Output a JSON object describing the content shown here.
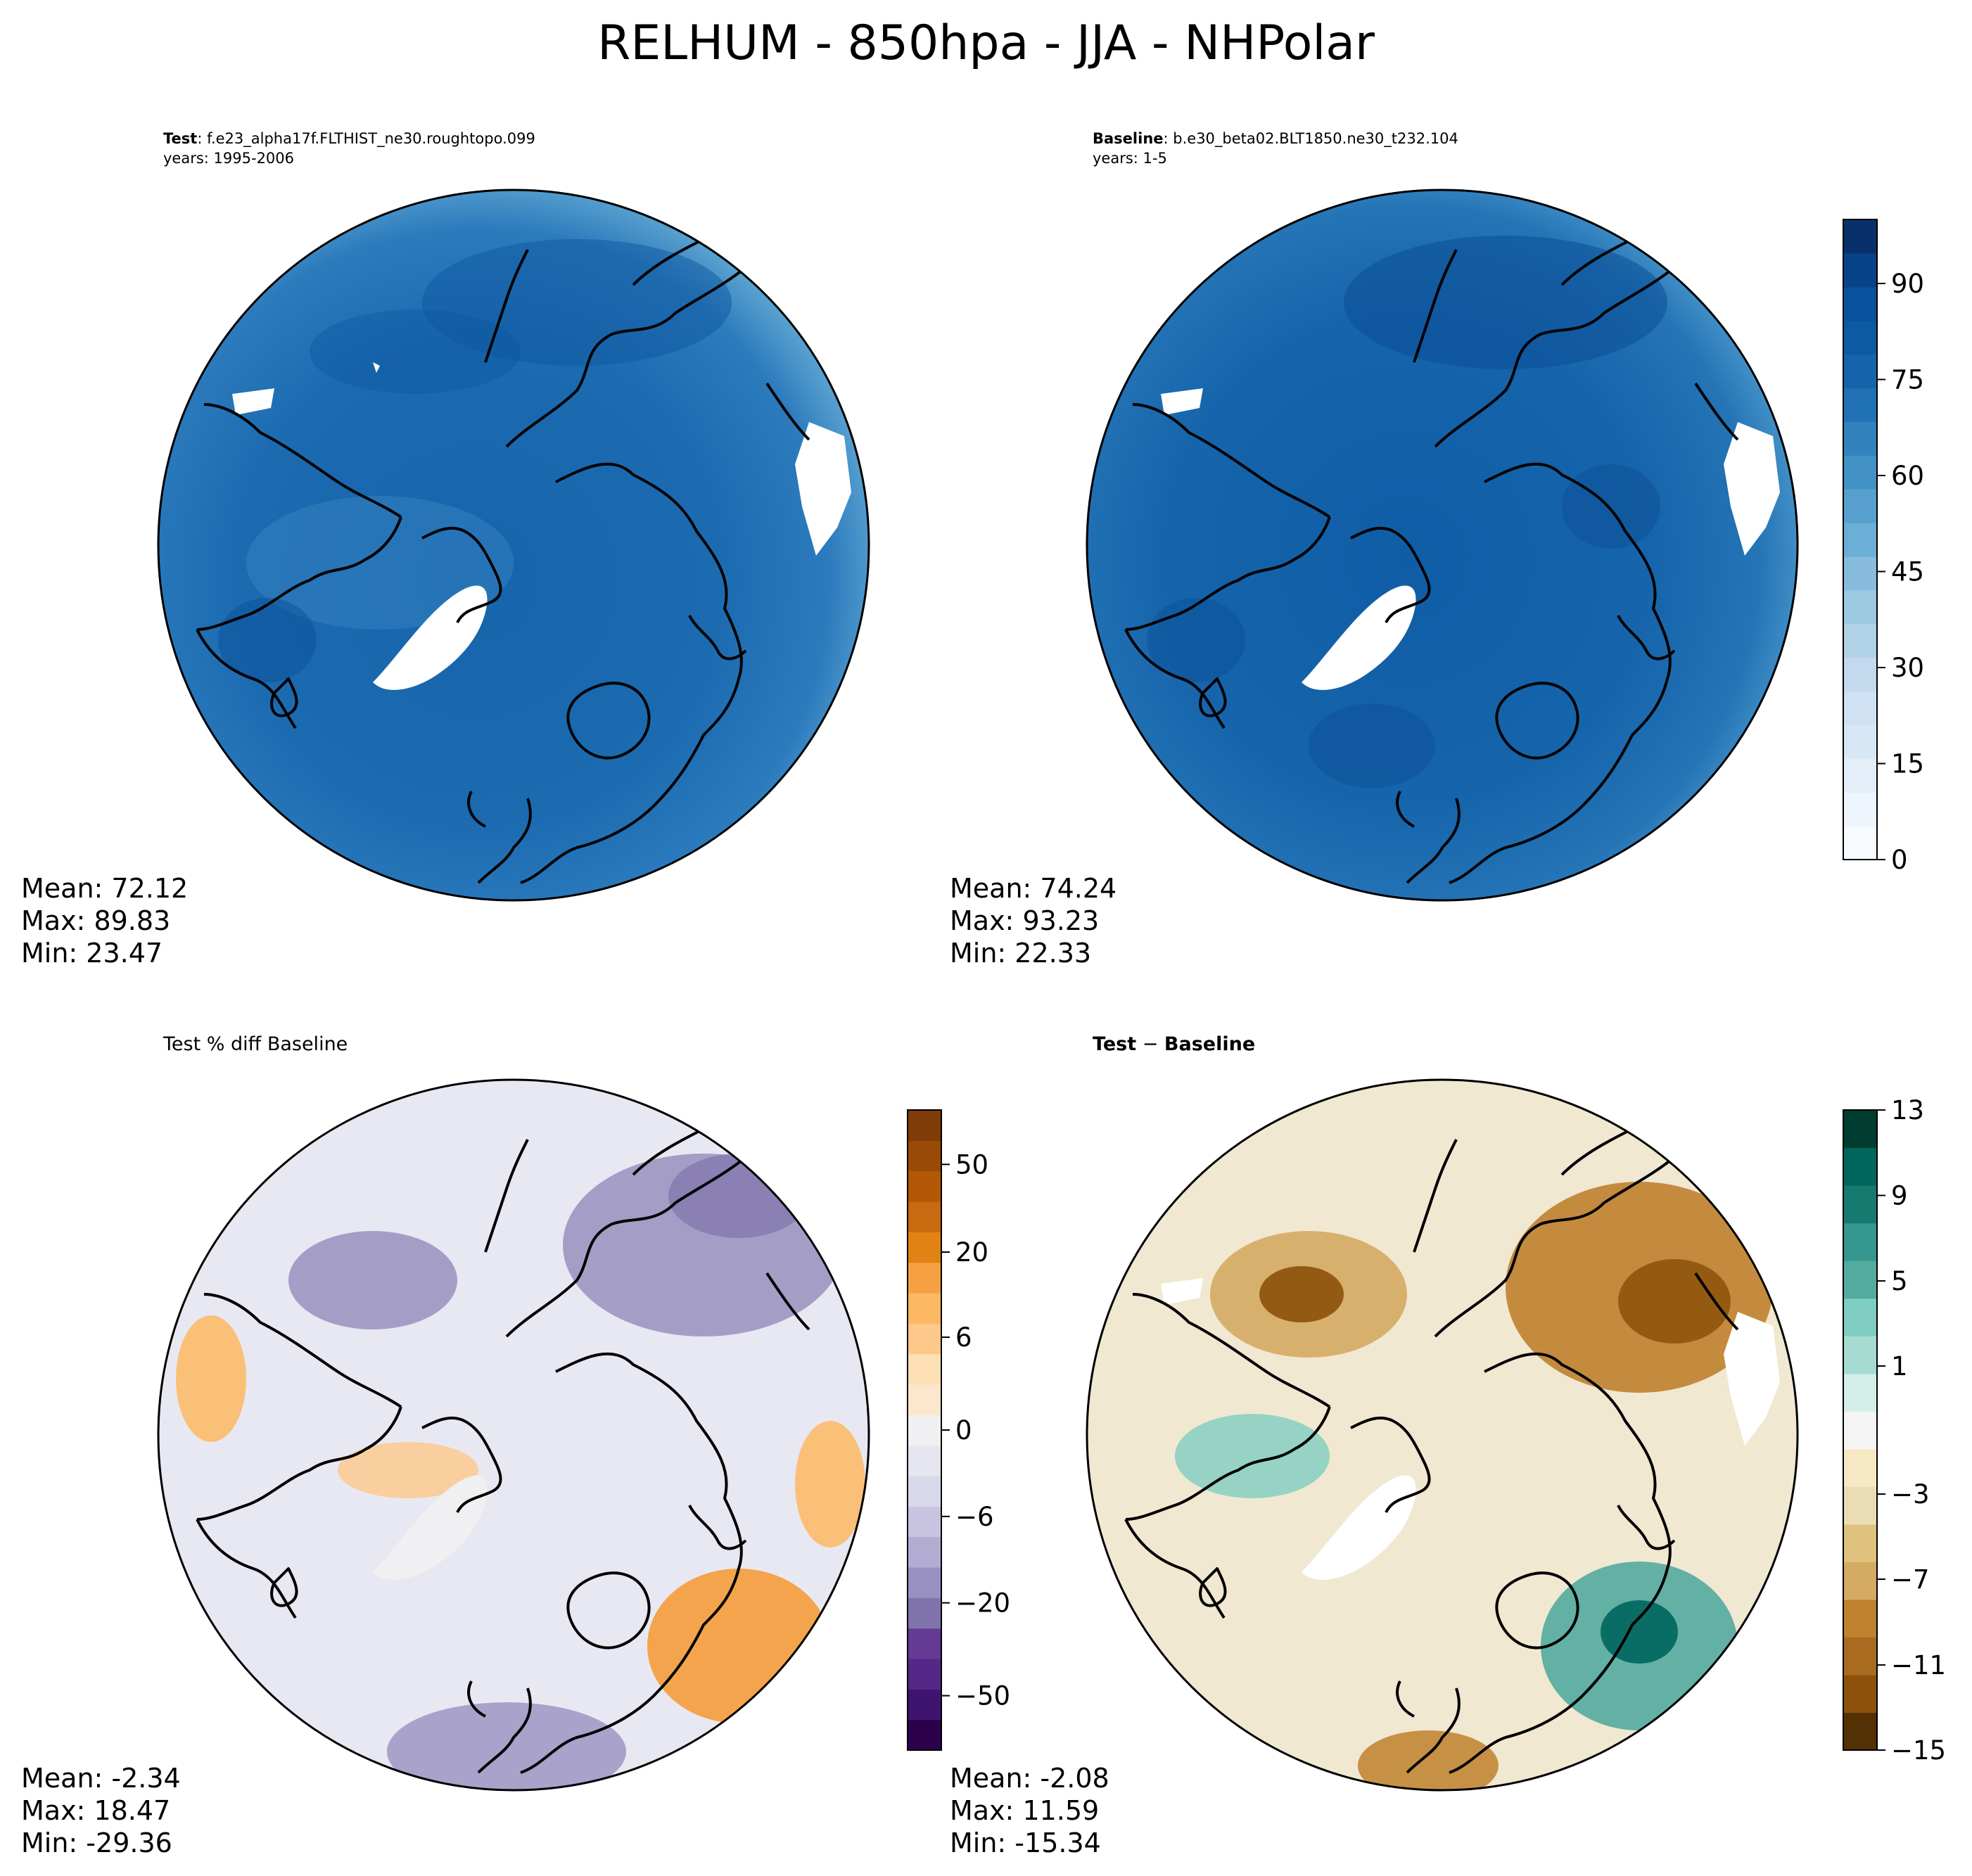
{
  "suptitle": "RELHUM - 850hpa - JJA - NHPolar",
  "panels": {
    "test": {
      "label": "Test",
      "case": ": f.e23_alpha17f.FLTHIST_ne30.roughtopo.099",
      "years": "years: 1995-2006",
      "stats": {
        "mean": "Mean: 72.12",
        "max": "Max: 89.83",
        "min": "Min: 23.47"
      }
    },
    "baseline": {
      "label": "Baseline",
      "case": ": b.e30_beta02.BLT1850.ne30_t232.104",
      "years": "years: 1-5",
      "stats": {
        "mean": "Mean: 74.24",
        "max": "Max: 93.23",
        "min": "Min: 22.33"
      }
    },
    "pctdiff": {
      "title": "Test % diff Baseline",
      "stats": {
        "mean": "Mean: -2.34",
        "max": "Max: 18.47",
        "min": "Min: -29.36"
      }
    },
    "diff": {
      "title_a": "Test",
      "title_sep": " − ",
      "title_b": "Baseline",
      "stats": {
        "mean": "Mean: -2.08",
        "max": "Max: 11.59",
        "min": "Min: -15.34"
      }
    }
  },
  "colorbars": {
    "main": {
      "ticks": [
        "0",
        "15",
        "30",
        "45",
        "60",
        "75",
        "90"
      ],
      "tick_values": [
        0,
        15,
        30,
        45,
        60,
        75,
        90
      ],
      "range": [
        0,
        100
      ],
      "colors": [
        "#f7fbff",
        "#eef5fc",
        "#e3eef9",
        "#d8e7f5",
        "#cfe1f2",
        "#c3daee",
        "#b2d2e8",
        "#9ecae1",
        "#87bcde",
        "#6baed6",
        "#57a0ce",
        "#4292c6",
        "#3282be",
        "#2171b5",
        "#1664ab",
        "#0b5aa2",
        "#08519c",
        "#084289",
        "#08306b"
      ]
    },
    "pctdiff": {
      "ticks": [
        "50",
        "20",
        "6",
        "0",
        "−6",
        "−20",
        "−50"
      ],
      "colors": [
        "#2d004b",
        "#3f1470",
        "#542788",
        "#653a95",
        "#8073ac",
        "#9890c0",
        "#b2abd2",
        "#c8c3e0",
        "#d8daeb",
        "#e6e6f0",
        "#f0f0f2",
        "#fde7cc",
        "#fee0b6",
        "#fdc88a",
        "#fdb863",
        "#f4a043",
        "#e08214",
        "#c86a0f",
        "#b35806",
        "#9a4a07",
        "#7f3b08"
      ]
    },
    "diff": {
      "ticks": [
        "13",
        "9",
        "5",
        "1",
        "−3",
        "−7",
        "−11",
        "−15"
      ],
      "colors": [
        "#543005",
        "#8c510a",
        "#a86b1f",
        "#bf812d",
        "#d5aa62",
        "#dfc27d",
        "#eadcb5",
        "#f6e8c3",
        "#f5f5f5",
        "#d3eee9",
        "#a6dbd1",
        "#80cdc1",
        "#52ab9e",
        "#35978f",
        "#167a71",
        "#01665e",
        "#003c30"
      ]
    }
  }
}
